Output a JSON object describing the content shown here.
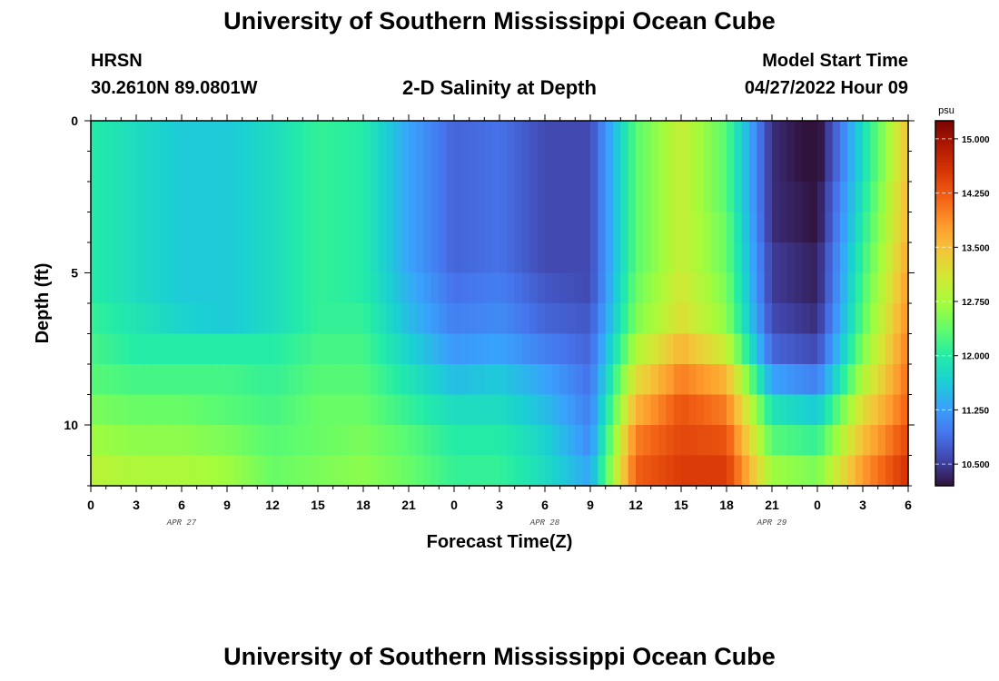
{
  "page": {
    "title": "University of Southern Mississippi Ocean Cube",
    "footer_title": "University of Southern Mississippi Ocean Cube"
  },
  "header": {
    "station": "HRSN",
    "coords": "30.2610N  89.0801W",
    "product": "2-D Salinity at Depth",
    "model_label": "Model Start Time",
    "model_time": "04/27/2022 Hour 09"
  },
  "chart_data": {
    "type": "heatmap",
    "title": "2-D Salinity at Depth",
    "xlabel": "Forecast Time(Z)",
    "ylabel": "Depth (ft)",
    "x_hours": [
      0,
      3,
      6,
      9,
      12,
      15,
      18,
      21,
      24,
      27,
      30,
      33,
      36,
      39,
      42,
      45,
      48,
      51,
      54
    ],
    "x_tick_labels": [
      "0",
      "3",
      "6",
      "9",
      "12",
      "15",
      "18",
      "21",
      "0",
      "3",
      "6",
      "9",
      "12",
      "15",
      "18",
      "21",
      "0",
      "3",
      "6"
    ],
    "date_labels": [
      {
        "hour": 6,
        "label": "APR 27"
      },
      {
        "hour": 30,
        "label": "APR 28"
      },
      {
        "hour": 45,
        "label": "APR 29"
      }
    ],
    "ylim": [
      0,
      12
    ],
    "y_ticks": [
      0,
      5,
      10
    ],
    "y_tick_labels": [
      "0",
      "5",
      "10"
    ],
    "depth_levels": [
      0,
      1,
      2,
      3,
      4,
      5,
      6,
      7,
      8,
      9,
      10,
      11
    ],
    "salinity_psu": [
      [
        12.0,
        11.8,
        11.6,
        11.6,
        11.8,
        12.1,
        12.0,
        11.3,
        10.8,
        10.9,
        10.6,
        10.6,
        12.3,
        13.0,
        12.3,
        10.4,
        10.1,
        11.8,
        13.5
      ],
      [
        12.0,
        11.8,
        11.6,
        11.6,
        11.8,
        12.1,
        12.0,
        11.3,
        10.8,
        10.9,
        10.6,
        10.6,
        12.3,
        13.0,
        12.3,
        10.4,
        10.1,
        11.8,
        13.5
      ],
      [
        12.0,
        11.8,
        11.6,
        11.6,
        11.8,
        12.1,
        12.0,
        11.3,
        10.8,
        10.9,
        10.6,
        10.6,
        12.3,
        13.0,
        12.3,
        10.4,
        10.2,
        11.9,
        13.6
      ],
      [
        12.0,
        11.8,
        11.6,
        11.6,
        11.8,
        12.1,
        12.0,
        11.3,
        10.8,
        10.9,
        10.6,
        10.6,
        12.3,
        13.0,
        12.4,
        10.4,
        10.2,
        12.0,
        13.6
      ],
      [
        12.0,
        11.8,
        11.6,
        11.6,
        11.8,
        12.1,
        12.0,
        11.3,
        10.8,
        10.9,
        10.6,
        10.6,
        12.3,
        13.0,
        12.4,
        10.5,
        10.3,
        12.1,
        13.7
      ],
      [
        12.0,
        11.8,
        11.6,
        11.6,
        11.8,
        12.1,
        12.0,
        11.4,
        10.9,
        11.0,
        10.7,
        10.6,
        12.4,
        13.1,
        12.5,
        10.5,
        10.3,
        12.2,
        13.8
      ],
      [
        12.1,
        11.9,
        11.7,
        11.6,
        11.8,
        12.1,
        12.1,
        11.5,
        11.0,
        11.1,
        10.8,
        10.7,
        12.5,
        13.2,
        12.6,
        10.6,
        10.4,
        12.3,
        13.9
      ],
      [
        12.2,
        12.0,
        12.0,
        12.0,
        12.0,
        12.2,
        12.2,
        11.7,
        11.2,
        11.3,
        11.0,
        10.8,
        12.8,
        13.6,
        13.0,
        10.8,
        10.6,
        12.5,
        14.0
      ],
      [
        12.3,
        12.2,
        12.2,
        12.2,
        12.1,
        12.3,
        12.3,
        11.9,
        11.5,
        11.6,
        11.3,
        10.9,
        13.2,
        14.0,
        13.6,
        11.3,
        11.0,
        12.8,
        14.1
      ],
      [
        12.5,
        12.4,
        12.4,
        12.3,
        12.2,
        12.4,
        12.4,
        12.1,
        11.8,
        11.8,
        11.5,
        11.0,
        13.6,
        14.3,
        14.0,
        11.9,
        11.6,
        13.2,
        14.2
      ],
      [
        12.7,
        12.6,
        12.6,
        12.5,
        12.3,
        12.4,
        12.5,
        12.3,
        12.0,
        12.0,
        11.7,
        11.1,
        14.0,
        14.4,
        14.3,
        12.3,
        12.1,
        13.5,
        14.4
      ],
      [
        12.9,
        12.8,
        12.8,
        12.7,
        12.4,
        12.5,
        12.6,
        12.4,
        12.1,
        12.1,
        11.8,
        11.3,
        14.2,
        14.5,
        14.5,
        12.7,
        12.5,
        13.8,
        14.6
      ]
    ],
    "colorbar": {
      "unit": "psu",
      "min": 10.2,
      "max": 15.25,
      "ticks": [
        15.0,
        14.25,
        13.5,
        12.75,
        12.0,
        11.25,
        10.5
      ],
      "tick_labels": [
        "15.000",
        "14.250",
        "13.500",
        "12.750",
        "12.000",
        "11.250",
        "10.500"
      ],
      "color_stops": [
        "#30123b",
        "#4145ab",
        "#4675ed",
        "#39a2fc",
        "#1bcfd4",
        "#24eca6",
        "#61fc6c",
        "#a4fc3b",
        "#d1e834",
        "#f3c63a",
        "#fe9b2d",
        "#f36315",
        "#d93806",
        "#b11901",
        "#7a0403"
      ]
    }
  }
}
